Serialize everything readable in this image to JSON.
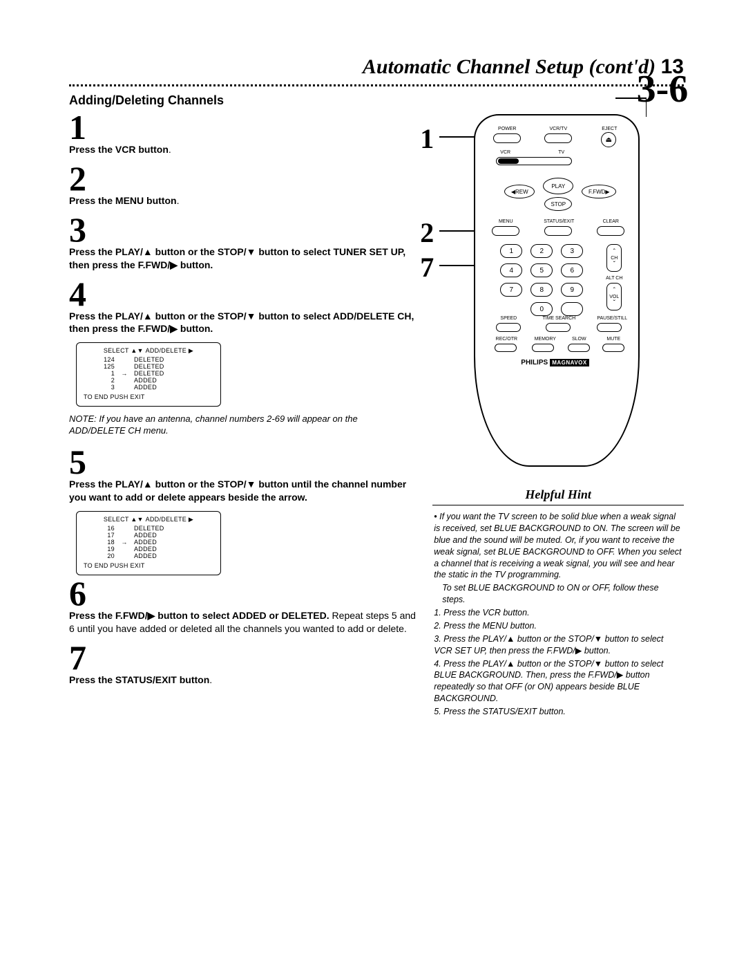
{
  "header": {
    "title": "Automatic Channel Setup (cont'd)",
    "page_number": "13"
  },
  "section_title": "Adding/Deleting Channels",
  "steps": {
    "s1": {
      "num": "1",
      "bold": "Press the VCR button",
      "tail": "."
    },
    "s2": {
      "num": "2",
      "bold": "Press the MENU button",
      "tail": "."
    },
    "s3": {
      "num": "3",
      "line1a": "Press the PLAY/",
      "line1b": " button or the STOP/",
      "line1c": " button to select TUNER SET UP, then press the F.FWD/",
      "line1d": " button."
    },
    "s4": {
      "num": "4",
      "line1a": "Press the PLAY/",
      "line1b": " button or the STOP/",
      "line1c": " button to select ADD/DELETE CH, then press the F.FWD/",
      "line1d": " button."
    },
    "s5": {
      "num": "5",
      "line1a": "Press the PLAY/",
      "line1b": " button or the STOP/",
      "line1c": " button until the channel number you want to add or delete appears beside the arrow."
    },
    "s6": {
      "num": "6",
      "bold_a": "Press the F.FWD/",
      "bold_b": " button to select ADDED or DELETED.",
      "plain": " Repeat steps 5 and 6 until you have added or deleted all the channels you wanted to add or delete."
    },
    "s7": {
      "num": "7",
      "bold": "Press the STATUS/EXIT button",
      "tail": "."
    }
  },
  "note": "NOTE: If you have an antenna, channel numbers 2-69 will appear on the ADD/DELETE CH menu.",
  "osd1": {
    "head_l": "SELECT",
    "head_r": "ADD/DELETE",
    "rows": [
      {
        "ch": "124",
        "sel": "",
        "st": "DELETED"
      },
      {
        "ch": "125",
        "sel": "",
        "st": "DELETED"
      },
      {
        "ch": "1",
        "sel": "→",
        "st": "DELETED"
      },
      {
        "ch": "2",
        "sel": "",
        "st": "ADDED"
      },
      {
        "ch": "3",
        "sel": "",
        "st": "ADDED"
      }
    ],
    "foot": "TO END PUSH EXIT"
  },
  "osd2": {
    "head_l": "SELECT",
    "head_r": "ADD/DELETE",
    "rows": [
      {
        "ch": "16",
        "sel": "",
        "st": "DELETED"
      },
      {
        "ch": "17",
        "sel": "",
        "st": "ADDED"
      },
      {
        "ch": "18",
        "sel": "→",
        "st": "ADDED"
      },
      {
        "ch": "19",
        "sel": "",
        "st": "ADDED"
      },
      {
        "ch": "20",
        "sel": "",
        "st": "ADDED"
      }
    ],
    "foot": "TO END PUSH EXIT"
  },
  "callouts": {
    "a": "3-6",
    "b": "1",
    "c": "2",
    "d": "7"
  },
  "remote": {
    "row1": {
      "l1": "POWER",
      "l2": "VCR/TV",
      "l3": "EJECT"
    },
    "slider": {
      "l": "VCR",
      "r": "TV"
    },
    "transport": {
      "play": "PLAY",
      "rew": "REW",
      "ffwd": "F.FWD",
      "stop": "STOP"
    },
    "row_menu": {
      "l1": "MENU",
      "l2": "STATUS/EXIT",
      "l3": "CLEAR"
    },
    "nums": [
      "1",
      "2",
      "3",
      "4",
      "5",
      "6",
      "7",
      "8",
      "9",
      "0"
    ],
    "ch": "CH",
    "altch": "ALT CH",
    "vol": "VOL",
    "row_bot1": {
      "l1": "SPEED",
      "l2": "TIME SEARCH",
      "l3": "PAUSE/STILL"
    },
    "row_bot2": {
      "l1": "REC/OTR",
      "l2": "MEMORY",
      "l3": "SLOW",
      "l4": "MUTE"
    },
    "brand_l": "PHILIPS",
    "brand_r": "MAGNAVOX"
  },
  "hint": {
    "title": "Helpful Hint",
    "bullet_p1": "If you want the TV screen to be solid blue when a weak signal is received, set BLUE BACKGROUND to ON. The screen will be blue and the sound will be muted. Or, if you want to receive the weak signal, set BLUE BACKGROUND to OFF. When you select a channel that is receiving a weak signal, you will see and hear the static in the TV programming.",
    "lead": "To set BLUE BACKGROUND to ON or OFF, follow these steps.",
    "i1": "1. Press the VCR button.",
    "i2": "2. Press the MENU button.",
    "i3a": "3. Press the PLAY/",
    "i3b": " button or the STOP/",
    "i3c": " button to select VCR SET UP, then press the F.FWD/",
    "i3d": " button.",
    "i4a": "4. Press the PLAY/",
    "i4b": " button or the STOP/",
    "i4c": " button to select BLUE BACKGROUND. Then, press the F.FWD/",
    "i4d": " button repeatedly so that OFF (or ON) appears beside BLUE BACKGROUND.",
    "i5": "5. Press the STATUS/EXIT button."
  },
  "sym": {
    "up": "▲",
    "down": "▼",
    "right": "▶",
    "eject": "⏏",
    "caret_up": "ˆ",
    "caret_dn": "ˇ"
  }
}
